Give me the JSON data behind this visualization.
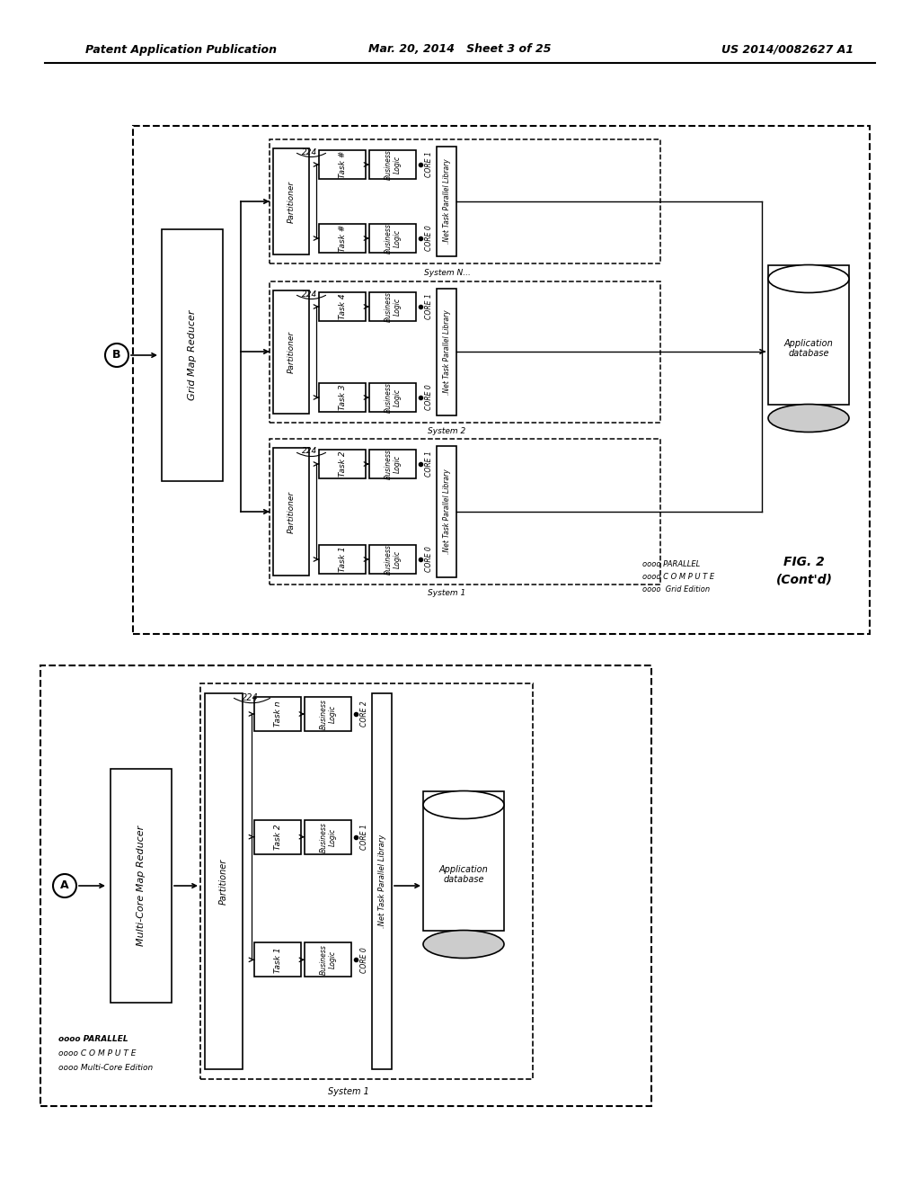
{
  "bg_color": "#ffffff",
  "header_left": "Patent Application Publication",
  "header_center": "Mar. 20, 2014   Sheet 3 of 25",
  "header_right": "US 2014/0082627 A1"
}
